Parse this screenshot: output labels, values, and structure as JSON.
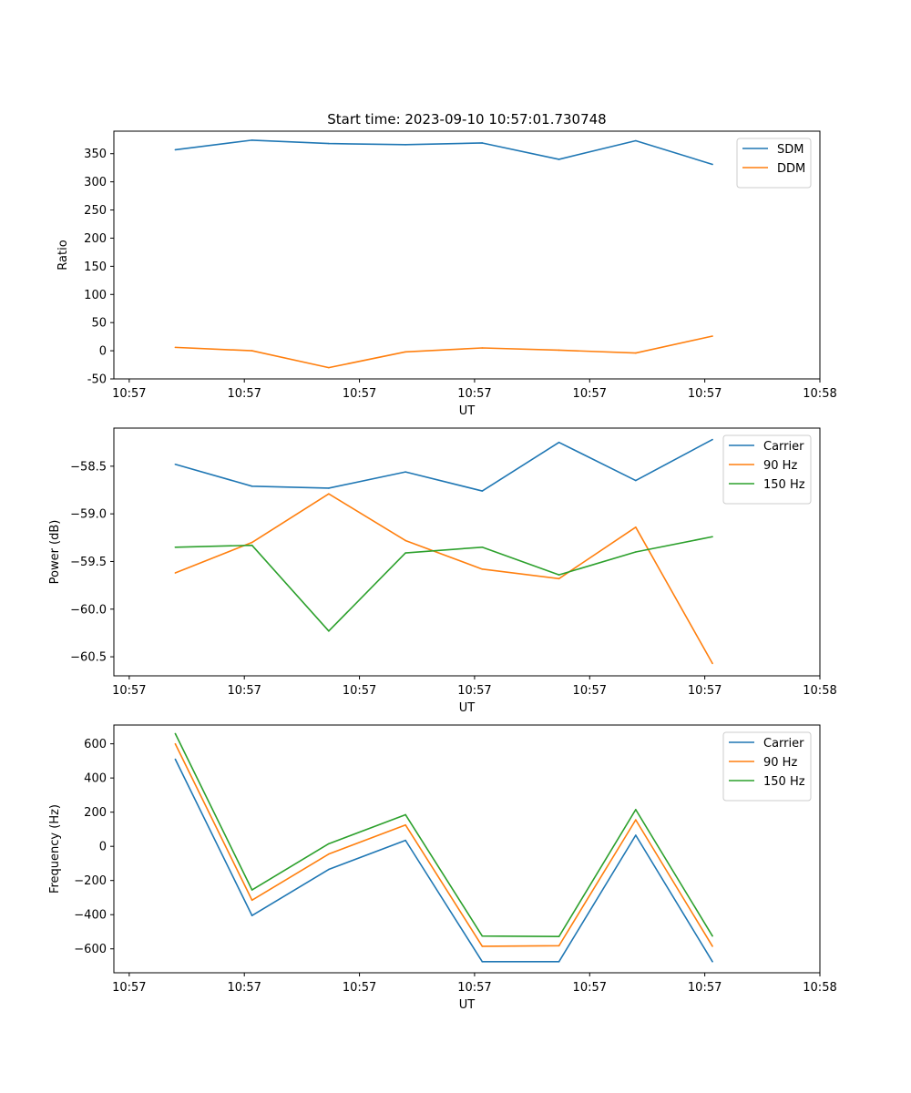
{
  "chart_data": [
    {
      "type": "line",
      "title": "Start time: 2023-09-10 10:57:01.730748",
      "xlabel": "UT",
      "ylabel": "Ratio",
      "x": [
        1,
        2,
        3,
        4,
        5,
        6,
        7,
        8
      ],
      "xlim": [
        0.2,
        9.4
      ],
      "xticks": [
        0.4,
        1.9,
        3.4,
        4.9,
        6.4,
        7.9,
        9.4
      ],
      "xtick_labels": [
        "10:57",
        "10:57",
        "10:57",
        "10:57",
        "10:57",
        "10:57",
        "10:58"
      ],
      "ylim": [
        -50,
        390
      ],
      "yticks": [
        -50,
        0,
        50,
        100,
        150,
        200,
        250,
        300,
        350
      ],
      "legend_position": "top-right",
      "series": [
        {
          "name": "SDM",
          "color": "#1f77b4",
          "values": [
            357,
            374,
            368,
            366,
            369,
            340,
            373,
            331
          ]
        },
        {
          "name": "DDM",
          "color": "#ff7f0e",
          "values": [
            6,
            0,
            -30,
            -2,
            5,
            1,
            -4,
            26
          ]
        }
      ]
    },
    {
      "type": "line",
      "title": "",
      "xlabel": "UT",
      "ylabel": "Power (dB)",
      "x": [
        1,
        2,
        3,
        4,
        5,
        6,
        7,
        8
      ],
      "xlim": [
        0.2,
        9.4
      ],
      "xticks": [
        0.4,
        1.9,
        3.4,
        4.9,
        6.4,
        7.9,
        9.4
      ],
      "xtick_labels": [
        "10:57",
        "10:57",
        "10:57",
        "10:57",
        "10:57",
        "10:57",
        "10:58"
      ],
      "ylim": [
        -60.7,
        -58.1
      ],
      "yticks": [
        -60.5,
        -60.0,
        -59.5,
        -59.0,
        -58.5
      ],
      "ytick_labels": [
        "−60.5",
        "−60.0",
        "−59.5",
        "−59.0",
        "−58.5"
      ],
      "legend_position": "top-right",
      "series": [
        {
          "name": "Carrier",
          "color": "#1f77b4",
          "values": [
            -58.48,
            -58.71,
            -58.73,
            -58.56,
            -58.76,
            -58.25,
            -58.65,
            -58.22
          ]
        },
        {
          "name": "90 Hz",
          "color": "#ff7f0e",
          "values": [
            -59.62,
            -59.3,
            -58.79,
            -59.28,
            -59.58,
            -59.68,
            -59.14,
            -60.57
          ]
        },
        {
          "name": "150 Hz",
          "color": "#2ca02c",
          "values": [
            -59.35,
            -59.33,
            -60.23,
            -59.41,
            -59.35,
            -59.64,
            -59.4,
            -59.24
          ]
        }
      ]
    },
    {
      "type": "line",
      "title": "",
      "xlabel": "UT",
      "ylabel": "Frequency (Hz)",
      "x": [
        1,
        2,
        3,
        4,
        5,
        6,
        7,
        8
      ],
      "xlim": [
        0.2,
        9.4
      ],
      "xticks": [
        0.4,
        1.9,
        3.4,
        4.9,
        6.4,
        7.9,
        9.4
      ],
      "xtick_labels": [
        "10:57",
        "10:57",
        "10:57",
        "10:57",
        "10:57",
        "10:57",
        "10:58"
      ],
      "ylim": [
        -740,
        710
      ],
      "yticks": [
        -600,
        -400,
        -200,
        0,
        200,
        400,
        600
      ],
      "ytick_labels": [
        "−600",
        "−400",
        "−200",
        "0",
        "200",
        "400",
        "600"
      ],
      "legend_position": "top-right",
      "series": [
        {
          "name": "Carrier",
          "color": "#1f77b4",
          "values": [
            510,
            -405,
            -135,
            35,
            -675,
            -675,
            65,
            -675
          ]
        },
        {
          "name": "90 Hz",
          "color": "#ff7f0e",
          "values": [
            600,
            -315,
            -45,
            125,
            -585,
            -582,
            155,
            -585
          ]
        },
        {
          "name": "150 Hz",
          "color": "#2ca02c",
          "values": [
            660,
            -255,
            15,
            185,
            -525,
            -528,
            215,
            -525
          ]
        }
      ]
    }
  ]
}
